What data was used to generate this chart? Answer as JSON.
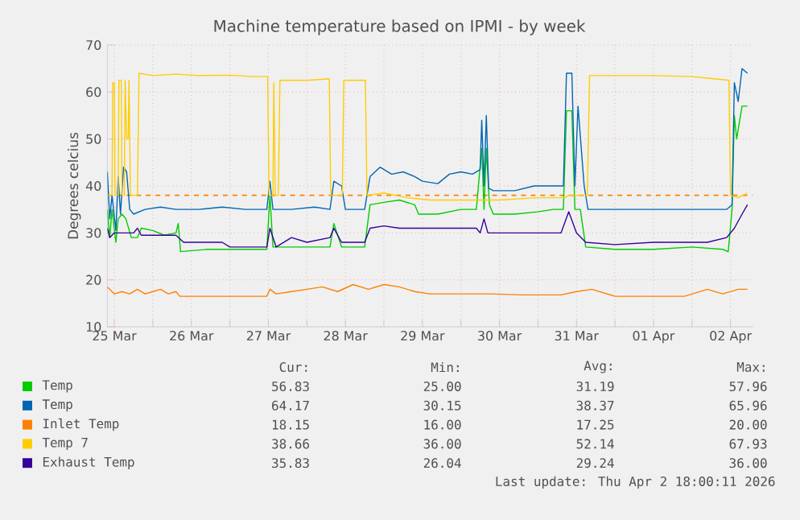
{
  "chart_data": {
    "type": "line",
    "title": "Machine temperature based on IPMI - by week",
    "ylabel": "Degrees celcius",
    "xlim": [
      "2026-03-25T09:50",
      "2026-04-02T18:58"
    ],
    "ylim": [
      10,
      70
    ],
    "yticks": [
      10,
      20,
      30,
      40,
      50,
      60,
      70
    ],
    "xticks": [
      {
        "value": "2026-03-25T12:00",
        "label": "25 Mar"
      },
      {
        "value": "2026-03-26T00:00",
        "label": null
      },
      {
        "value": "2026-03-26T12:00",
        "label": "26 Mar"
      },
      {
        "value": "2026-03-27T00:00",
        "label": null
      },
      {
        "value": "2026-03-27T12:00",
        "label": "27 Mar"
      },
      {
        "value": "2026-03-28T00:00",
        "label": null
      },
      {
        "value": "2026-03-28T12:00",
        "label": "28 Mar"
      },
      {
        "value": "2026-03-29T00:00",
        "label": null
      },
      {
        "value": "2026-03-29T12:00",
        "label": "29 Mar"
      },
      {
        "value": "2026-03-30T00:00",
        "label": null
      },
      {
        "value": "2026-03-30T12:00",
        "label": "30 Mar"
      },
      {
        "value": "2026-03-31T00:00",
        "label": null
      },
      {
        "value": "2026-03-31T12:00",
        "label": "31 Mar"
      },
      {
        "value": "2026-04-01T00:00",
        "label": null
      },
      {
        "value": "2026-04-01T12:00",
        "label": "01 Apr"
      },
      {
        "value": "2026-04-02T00:00",
        "label": null
      },
      {
        "value": "2026-04-02T12:00",
        "label": "02 Apr"
      }
    ],
    "grid": true,
    "legend": "bottom",
    "ref_lines": [
      {
        "axis": "y",
        "value": 38,
        "color": "#ff8000",
        "line_style": "dashed"
      }
    ],
    "series": [
      {
        "name": "Temp",
        "color": "#00cc00",
        "x": [
          "2026-03-25T09:50",
          "2026-03-25T10:34",
          "2026-03-25T11:17",
          "2026-03-25T12:29",
          "2026-03-25T13:12",
          "2026-03-25T14:24",
          "2026-03-25T15:36",
          "2026-03-25T17:17",
          "2026-03-25T19:12",
          "2026-03-25T20:24",
          "2026-03-26T00:00",
          "2026-03-26T03:36",
          "2026-03-26T07:12",
          "2026-03-26T07:55",
          "2026-03-26T08:38",
          "2026-03-26T16:48",
          "2026-03-27T00:00",
          "2026-03-27T07:12",
          "2026-03-27T11:31",
          "2026-03-27T12:29",
          "2026-03-27T13:26",
          "2026-03-27T19:12",
          "2026-03-28T02:24",
          "2026-03-28T07:12",
          "2026-03-28T08:24",
          "2026-03-28T10:48",
          "2026-03-28T18:00",
          "2026-03-28T19:41",
          "2026-03-29T00:00",
          "2026-03-29T04:48",
          "2026-03-29T09:36",
          "2026-03-29T10:48",
          "2026-03-29T16:48",
          "2026-03-30T00:00",
          "2026-03-30T04:48",
          "2026-03-30T06:29",
          "2026-03-30T07:12",
          "2026-03-30T07:55",
          "2026-03-30T08:53",
          "2026-03-30T10:05",
          "2026-03-30T16:48",
          "2026-03-31T00:00",
          "2026-03-31T04:48",
          "2026-03-31T07:55",
          "2026-03-31T08:53",
          "2026-03-31T10:34",
          "2026-03-31T11:31",
          "2026-03-31T13:12",
          "2026-03-31T14:53",
          "2026-04-01T00:00",
          "2026-04-01T12:00",
          "2026-04-02T00:00",
          "2026-04-02T09:36",
          "2026-04-02T11:17",
          "2026-04-02T12:29",
          "2026-04-02T13:12",
          "2026-04-02T13:55",
          "2026-04-02T15:36",
          "2026-04-02T17:17"
        ],
        "values": [
          35,
          29,
          35,
          28,
          33,
          34,
          33,
          29,
          29,
          31,
          30.5,
          29.5,
          30,
          32,
          26,
          26.5,
          26.5,
          26.5,
          26.5,
          38,
          27,
          27,
          27,
          27,
          32,
          27,
          27,
          36,
          36.5,
          37,
          36,
          34,
          34,
          35,
          35,
          48,
          35,
          48,
          36,
          34,
          34,
          34.5,
          35,
          35,
          56,
          56,
          35,
          35,
          27,
          26.5,
          26.5,
          27,
          26.5,
          26,
          35,
          55,
          50,
          57,
          57
        ]
      },
      {
        "name": "Temp",
        "color": "#0066b3",
        "x": [
          "2026-03-25T09:50",
          "2026-03-25T10:34",
          "2026-03-25T11:17",
          "2026-03-25T12:29",
          "2026-03-25T13:12",
          "2026-03-25T13:55",
          "2026-03-25T14:53",
          "2026-03-25T15:50",
          "2026-03-25T16:48",
          "2026-03-25T18:00",
          "2026-03-25T21:36",
          "2026-03-26T02:24",
          "2026-03-26T07:12",
          "2026-03-26T14:24",
          "2026-03-26T21:36",
          "2026-03-27T04:48",
          "2026-03-27T11:31",
          "2026-03-27T12:29",
          "2026-03-27T13:26",
          "2026-03-27T19:12",
          "2026-03-28T02:24",
          "2026-03-28T07:12",
          "2026-03-28T08:24",
          "2026-03-28T10:48",
          "2026-03-28T12:00",
          "2026-03-28T18:00",
          "2026-03-28T19:41",
          "2026-03-28T22:48",
          "2026-03-29T02:24",
          "2026-03-29T06:00",
          "2026-03-29T09:36",
          "2026-03-29T12:00",
          "2026-03-29T16:48",
          "2026-03-29T20:24",
          "2026-03-30T00:00",
          "2026-03-30T03:36",
          "2026-03-30T06:00",
          "2026-03-30T06:29",
          "2026-03-30T07:12",
          "2026-03-30T07:55",
          "2026-03-30T08:38",
          "2026-03-30T10:05",
          "2026-03-30T16:48",
          "2026-03-30T22:48",
          "2026-03-31T04:48",
          "2026-03-31T07:55",
          "2026-03-31T08:53",
          "2026-03-31T10:34",
          "2026-03-31T11:31",
          "2026-03-31T12:29",
          "2026-03-31T14:24",
          "2026-03-31T15:36",
          "2026-04-01T00:00",
          "2026-04-01T09:36",
          "2026-04-01T19:12",
          "2026-04-02T04:48",
          "2026-04-02T10:48",
          "2026-04-02T12:29",
          "2026-04-02T13:12",
          "2026-04-02T14:24",
          "2026-04-02T15:36",
          "2026-04-02T17:17"
        ],
        "values": [
          43,
          33,
          38,
          30.5,
          42,
          34,
          44,
          43,
          35,
          34,
          35,
          35.5,
          35,
          35,
          35.5,
          35,
          35,
          41,
          35,
          35,
          35.5,
          35,
          41,
          40,
          35,
          35,
          42,
          44,
          42.5,
          43,
          42,
          41,
          40.5,
          42.5,
          43,
          42.5,
          43.5,
          54,
          40,
          55,
          39.5,
          39,
          39,
          40,
          40,
          40,
          64,
          64,
          40,
          57,
          40,
          35,
          35,
          35,
          35,
          35,
          35,
          36,
          62,
          58,
          65,
          64
        ]
      },
      {
        "name": "Inlet Temp",
        "color": "#ff8000",
        "x": [
          "2026-03-25T09:50",
          "2026-03-25T12:00",
          "2026-03-25T14:24",
          "2026-03-25T16:48",
          "2026-03-25T19:12",
          "2026-03-25T21:36",
          "2026-03-26T00:00",
          "2026-03-26T02:24",
          "2026-03-26T04:48",
          "2026-03-26T07:12",
          "2026-03-26T08:24",
          "2026-03-26T16:48",
          "2026-03-27T00:00",
          "2026-03-27T11:31",
          "2026-03-27T12:29",
          "2026-03-27T14:24",
          "2026-03-27T19:12",
          "2026-03-28T00:00",
          "2026-03-28T04:48",
          "2026-03-28T09:36",
          "2026-03-28T14:24",
          "2026-03-28T19:12",
          "2026-03-29T00:00",
          "2026-03-29T04:48",
          "2026-03-29T09:36",
          "2026-03-29T14:24",
          "2026-03-30T00:00",
          "2026-03-30T09:36",
          "2026-03-30T19:12",
          "2026-03-31T07:12",
          "2026-03-31T12:00",
          "2026-03-31T16:48",
          "2026-04-01T00:00",
          "2026-04-01T09:36",
          "2026-04-01T21:36",
          "2026-04-02T04:48",
          "2026-04-02T09:36",
          "2026-04-02T14:24",
          "2026-04-02T17:17"
        ],
        "values": [
          18.5,
          17,
          17.5,
          17,
          18,
          17,
          17.5,
          18,
          17,
          17.5,
          16.5,
          16.5,
          16.5,
          16.5,
          18,
          17,
          17.5,
          18,
          18.5,
          17.5,
          19,
          18,
          19,
          18.5,
          17.5,
          17,
          17,
          17,
          16.8,
          16.8,
          17.5,
          18,
          16.5,
          16.5,
          16.5,
          18,
          17,
          18,
          18
        ]
      },
      {
        "name": "Temp 7",
        "color": "#ffcc00",
        "x": [
          "2026-03-25T09:50",
          "2026-03-25T11:17",
          "2026-03-25T11:31",
          "2026-03-25T12:00",
          "2026-03-25T12:14",
          "2026-03-25T13:12",
          "2026-03-25T13:26",
          "2026-03-25T14:10",
          "2026-03-25T14:24",
          "2026-03-25T15:07",
          "2026-03-25T15:22",
          "2026-03-25T15:50",
          "2026-03-25T16:19",
          "2026-03-25T16:34",
          "2026-03-25T17:02",
          "2026-03-25T19:12",
          "2026-03-25T19:41",
          "2026-03-26T00:00",
          "2026-03-26T07:12",
          "2026-03-26T14:24",
          "2026-03-27T00:00",
          "2026-03-27T07:12",
          "2026-03-27T11:46",
          "2026-03-27T12:14",
          "2026-03-27T13:26",
          "2026-03-27T13:41",
          "2026-03-27T14:10",
          "2026-03-27T15:07",
          "2026-03-27T15:36",
          "2026-03-28T00:00",
          "2026-03-28T06:58",
          "2026-03-28T07:26",
          "2026-03-28T11:02",
          "2026-03-28T11:31",
          "2026-03-28T18:14",
          "2026-03-28T18:43",
          "2026-03-29T00:00",
          "2026-03-29T07:12",
          "2026-03-29T14:24",
          "2026-03-30T00:00",
          "2026-03-30T12:00",
          "2026-03-30T23:31",
          "2026-03-31T08:24",
          "2026-03-31T09:36",
          "2026-03-31T15:22",
          "2026-03-31T16:05",
          "2026-04-01T00:00",
          "2026-04-01T12:00",
          "2026-04-02T00:00",
          "2026-04-02T07:12",
          "2026-04-02T11:31",
          "2026-04-02T12:00",
          "2026-04-02T14:24",
          "2026-04-02T17:17"
        ],
        "values": [
          38,
          38,
          62,
          62,
          38,
          38,
          62.5,
          62.5,
          38,
          38,
          62.5,
          50,
          50,
          62.5,
          38,
          38,
          64,
          63.5,
          63.8,
          63.5,
          63.6,
          63.3,
          63.3,
          38,
          38,
          62,
          38,
          38,
          62.5,
          62.5,
          62.8,
          38,
          38,
          62.5,
          62.5,
          38,
          38.5,
          37.5,
          37,
          37,
          37,
          37.5,
          37.5,
          38,
          38,
          63.5,
          63.5,
          63.5,
          63.3,
          62.8,
          62.5,
          38,
          37.5,
          38.5
        ]
      },
      {
        "name": "Exhaust Temp",
        "color": "#330099",
        "x": [
          "2026-03-25T09:50",
          "2026-03-25T10:34",
          "2026-03-25T12:00",
          "2026-03-25T14:24",
          "2026-03-25T18:00",
          "2026-03-25T19:12",
          "2026-03-25T20:24",
          "2026-03-26T00:00",
          "2026-03-26T07:12",
          "2026-03-26T09:36",
          "2026-03-26T21:36",
          "2026-03-27T00:00",
          "2026-03-27T11:31",
          "2026-03-27T12:29",
          "2026-03-27T14:24",
          "2026-03-27T19:12",
          "2026-03-28T00:00",
          "2026-03-28T07:12",
          "2026-03-28T08:24",
          "2026-03-28T10:48",
          "2026-03-28T18:00",
          "2026-03-28T19:41",
          "2026-03-29T00:00",
          "2026-03-29T04:48",
          "2026-03-29T12:00",
          "2026-03-29T19:12",
          "2026-03-30T04:48",
          "2026-03-30T06:00",
          "2026-03-30T07:12",
          "2026-03-30T08:24",
          "2026-03-30T16:48",
          "2026-03-31T07:12",
          "2026-03-31T09:36",
          "2026-03-31T12:00",
          "2026-03-31T14:53",
          "2026-04-01T00:00",
          "2026-04-01T12:00",
          "2026-04-02T04:48",
          "2026-04-02T10:48",
          "2026-04-02T13:12",
          "2026-04-02T15:36",
          "2026-04-02T17:17"
        ],
        "values": [
          31,
          29,
          30,
          30,
          30,
          31,
          29.5,
          29.5,
          29.5,
          28,
          28,
          27,
          27,
          31,
          27,
          29,
          28,
          29,
          31,
          28,
          28,
          31,
          31.5,
          31,
          31,
          31,
          31,
          30,
          33,
          30,
          30,
          30,
          34.5,
          30,
          28,
          27.5,
          28,
          28,
          29,
          31,
          34,
          36
        ]
      }
    ],
    "annotations": [
      "Cur:",
      "Min:",
      "Avg:",
      "Max:",
      "56.83",
      "25.00",
      "31.19",
      "57.96",
      "64.17",
      "30.15",
      "38.37",
      "65.96",
      "18.15",
      "16.00",
      "17.25",
      "20.00",
      "38.66",
      "36.00",
      "52.14",
      "67.93",
      "35.83",
      "26.04",
      "29.24",
      "36.00",
      "Last update: Thu Apr  2 18:00:11 2026"
    ]
  }
}
